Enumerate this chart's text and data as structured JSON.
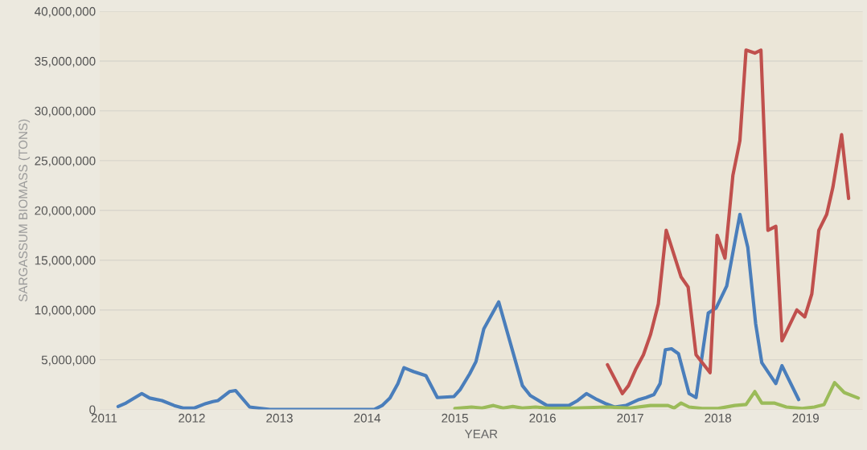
{
  "chart_data": {
    "type": "line",
    "xlabel": "YEAR",
    "ylabel": "SARGASSUM BIOMASS (TONS)",
    "grid": "y",
    "legend": false,
    "marker": "none",
    "line_style": "solid",
    "xlim": [
      2010.95,
      2019.65
    ],
    "xticks": [
      2011,
      2012,
      2013,
      2014,
      2015,
      2016,
      2017,
      2018,
      2019
    ],
    "ylim": [
      0,
      40000000
    ],
    "yticks": [
      0,
      {
        "value": 5000000,
        "label": "5,000,000"
      },
      {
        "value": 10000000,
        "label": "10,000,000"
      },
      {
        "value": 15000000,
        "label": "15,000,000"
      },
      {
        "value": 20000000,
        "label": "20,000,000"
      },
      {
        "value": 25000000,
        "label": "25,000,000"
      },
      {
        "value": 30000000,
        "label": "30,000,000"
      },
      {
        "value": 35000000,
        "label": "35,000,000"
      },
      {
        "value": 40000000,
        "label": "40,000,000"
      }
    ],
    "series": [
      {
        "color": "#4a7ebb",
        "x": [
          2011.16,
          2011.25,
          2011.43,
          2011.52,
          2011.66,
          2011.8,
          2011.9,
          2012.03,
          2012.16,
          2012.24,
          2012.3,
          2012.43,
          2012.5,
          2012.66,
          2012.75,
          2012.89,
          2014.08,
          2014.17,
          2014.26,
          2014.35,
          2014.42,
          2014.53,
          2014.67,
          2014.8,
          2014.99,
          2015.06,
          2015.17,
          2015.24,
          2015.33,
          2015.5,
          2015.68,
          2015.77,
          2015.86,
          2016.05,
          2016.3,
          2016.4,
          2016.5,
          2016.62,
          2016.73,
          2016.82,
          2016.95,
          2017.1,
          2017.18,
          2017.27,
          2017.34,
          2017.4,
          2017.47,
          2017.55,
          2017.67,
          2017.75,
          2017.89,
          2017.98,
          2018.1,
          2018.25,
          2018.34,
          2018.43,
          2018.5,
          2018.66,
          2018.73,
          2018.92
        ],
        "values": [
          300000,
          650000,
          1600000,
          1150000,
          900000,
          400000,
          150000,
          150000,
          600000,
          800000,
          900000,
          1800000,
          1900000,
          250000,
          150000,
          0,
          0,
          400000,
          1150000,
          2600000,
          4200000,
          3800000,
          3400000,
          1200000,
          1300000,
          2000000,
          3600000,
          4800000,
          8100000,
          10800000,
          5200000,
          2400000,
          1400000,
          400000,
          400000,
          900000,
          1600000,
          1000000,
          550000,
          250000,
          400000,
          1000000,
          1200000,
          1500000,
          2600000,
          6000000,
          6100000,
          5600000,
          1600000,
          1200000,
          9700000,
          10200000,
          12400000,
          19600000,
          16300000,
          8600000,
          4700000,
          2600000,
          4400000,
          1000000
        ]
      },
      {
        "color": "#c0504d",
        "x": [
          2016.74,
          2016.91,
          2016.98,
          2017.06,
          2017.15,
          2017.23,
          2017.32,
          2017.41,
          2017.58,
          2017.66,
          2017.75,
          2017.91,
          2017.99,
          2018.08,
          2018.17,
          2018.25,
          2018.32,
          2018.42,
          2018.49,
          2018.57,
          2018.66,
          2018.73,
          2018.9,
          2018.99,
          2019.07,
          2019.15,
          2019.24,
          2019.31,
          2019.41,
          2019.49
        ],
        "values": [
          4500000,
          1600000,
          2400000,
          4000000,
          5500000,
          7500000,
          10600000,
          18000000,
          13300000,
          12300000,
          5500000,
          3700000,
          17500000,
          15200000,
          23500000,
          27000000,
          36100000,
          35800000,
          36100000,
          18000000,
          18400000,
          6900000,
          10000000,
          9300000,
          11600000,
          18000000,
          19600000,
          22300000,
          27600000,
          21200000
        ]
      },
      {
        "color": "#9bbb59",
        "x": [
          2015.0,
          2015.19,
          2015.31,
          2015.44,
          2015.55,
          2015.66,
          2015.77,
          2015.92,
          2016.1,
          2016.37,
          2016.73,
          2017.0,
          2017.23,
          2017.43,
          2017.5,
          2017.58,
          2017.67,
          2017.82,
          2018.0,
          2018.19,
          2018.32,
          2018.42,
          2018.5,
          2018.64,
          2018.78,
          2018.96,
          2019.1,
          2019.21,
          2019.33,
          2019.44,
          2019.6
        ],
        "values": [
          100000,
          250000,
          150000,
          400000,
          150000,
          300000,
          150000,
          250000,
          100000,
          150000,
          250000,
          150000,
          400000,
          400000,
          150000,
          650000,
          250000,
          100000,
          100000,
          400000,
          500000,
          1800000,
          650000,
          650000,
          250000,
          100000,
          250000,
          500000,
          2700000,
          1700000,
          1150000
        ]
      }
    ]
  }
}
